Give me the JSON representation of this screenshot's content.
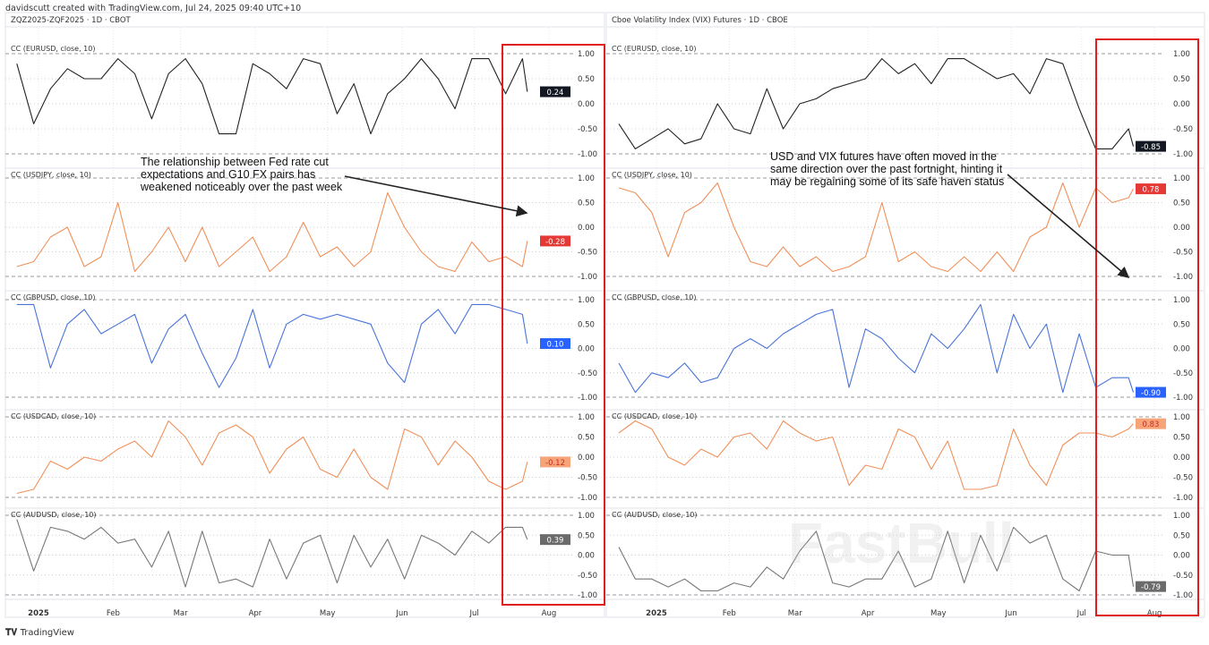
{
  "header": {
    "credit": "davidscutt created with TradingView.com, Jul 24, 2025 09:40 UTC+10"
  },
  "footer": {
    "brand": "TradingView"
  },
  "watermark": "FastBull",
  "chart_data": [
    {
      "type": "line",
      "title": "ZQZ2025-ZQF2025 · 1D · CBOT",
      "x": [
        "2024-12-16",
        "2024-12-23",
        "2024-12-30",
        "2025-01-06",
        "2025-01-13",
        "2025-01-20",
        "2025-01-27",
        "2025-02-03",
        "2025-02-10",
        "2025-02-17",
        "2025-02-24",
        "2025-03-03",
        "2025-03-10",
        "2025-03-17",
        "2025-03-24",
        "2025-03-31",
        "2025-04-07",
        "2025-04-14",
        "2025-04-21",
        "2025-04-28",
        "2025-05-05",
        "2025-05-12",
        "2025-05-19",
        "2025-05-26",
        "2025-06-02",
        "2025-06-09",
        "2025-06-16",
        "2025-06-23",
        "2025-06-30",
        "2025-07-07",
        "2025-07-14",
        "2025-07-21",
        "2025-07-23"
      ],
      "x_ticks": [
        "2025",
        "Feb",
        "Mar",
        "Apr",
        "May",
        "Jun",
        "Jul",
        "Aug"
      ],
      "y_ticks": [
        "1.00",
        "0.50",
        "0.00",
        "-0.50",
        "-1.00"
      ],
      "ylim": [
        -1,
        1
      ],
      "grid": true,
      "annotation": "The relationship between Fed rate cut expectations and G10 FX pairs has weakened noticeably over the past week",
      "highlight": "red box over last two weeks",
      "panes": [
        {
          "name": "CC (EURUSD, close, 10)",
          "color": "#222222",
          "last": "0.24",
          "badge": "#131722",
          "values": [
            0.9,
            0.8,
            -0.4,
            0.3,
            0.7,
            0.5,
            0.5,
            0.9,
            0.6,
            -0.3,
            0.6,
            0.9,
            0.4,
            -0.6,
            -0.6,
            0.8,
            0.6,
            0.3,
            0.9,
            0.8,
            -0.2,
            0.4,
            -0.6,
            0.2,
            0.5,
            0.9,
            0.5,
            -0.1,
            0.9,
            0.9,
            0.2,
            0.9,
            0.24
          ]
        },
        {
          "name": "CC (USDJPY, close, 10)",
          "color": "#f0905a",
          "last": "-0.28",
          "badge": "#e53935",
          "values": [
            -0.9,
            -0.8,
            -0.7,
            -0.2,
            0.0,
            -0.8,
            -0.6,
            0.5,
            -0.9,
            -0.5,
            0.0,
            -0.7,
            0.0,
            -0.8,
            -0.5,
            -0.2,
            -0.9,
            -0.6,
            0.1,
            -0.6,
            -0.4,
            -0.8,
            -0.5,
            0.7,
            0.0,
            -0.5,
            -0.8,
            -0.9,
            -0.3,
            -0.7,
            -0.6,
            -0.8,
            -0.28
          ]
        },
        {
          "name": "CC (GBPUSD, close, 10)",
          "color": "#4a74d9",
          "last": "0.10",
          "badge": "#2962ff",
          "values": [
            0.6,
            0.9,
            0.9,
            -0.4,
            0.5,
            0.8,
            0.3,
            0.5,
            0.7,
            -0.3,
            0.4,
            0.7,
            -0.1,
            -0.8,
            -0.2,
            0.8,
            -0.4,
            0.5,
            0.7,
            0.6,
            0.7,
            0.6,
            0.5,
            -0.3,
            -0.7,
            0.5,
            0.8,
            0.3,
            0.9,
            0.9,
            0.8,
            0.7,
            0.1
          ]
        },
        {
          "name": "CC (USDCAD, close, 10)",
          "color": "#f0905a",
          "last": "-0.12",
          "badge": "#f7a578",
          "values": [
            -0.6,
            -0.9,
            -0.8,
            -0.1,
            -0.3,
            0.0,
            -0.1,
            0.2,
            0.4,
            0.0,
            0.9,
            0.5,
            -0.2,
            0.6,
            0.8,
            0.5,
            -0.4,
            0.2,
            0.5,
            -0.3,
            -0.5,
            0.2,
            -0.5,
            -0.8,
            0.7,
            0.5,
            -0.2,
            0.4,
            0.0,
            -0.6,
            -0.8,
            -0.6,
            -0.12
          ]
        },
        {
          "name": "CC (AUDUSD, close, 10)",
          "color": "#777777",
          "last": "0.39",
          "badge": "#6b6b6b",
          "values": [
            0.6,
            0.9,
            -0.4,
            0.7,
            0.6,
            0.4,
            0.7,
            0.3,
            0.4,
            -0.3,
            0.6,
            -0.8,
            0.6,
            -0.7,
            -0.6,
            -0.8,
            0.4,
            -0.6,
            0.3,
            0.5,
            -0.7,
            0.5,
            -0.3,
            0.4,
            -0.6,
            0.5,
            0.3,
            0.0,
            0.6,
            0.3,
            0.7,
            0.7,
            0.39
          ]
        }
      ]
    },
    {
      "type": "line",
      "title": "Cboe Volatility Index (VIX) Futures · 1D · CBOE",
      "x": [
        "2024-12-16",
        "2024-12-23",
        "2024-12-30",
        "2025-01-06",
        "2025-01-13",
        "2025-01-20",
        "2025-01-27",
        "2025-02-03",
        "2025-02-10",
        "2025-02-17",
        "2025-02-24",
        "2025-03-03",
        "2025-03-10",
        "2025-03-17",
        "2025-03-24",
        "2025-03-31",
        "2025-04-07",
        "2025-04-14",
        "2025-04-21",
        "2025-04-28",
        "2025-05-05",
        "2025-05-12",
        "2025-05-19",
        "2025-05-26",
        "2025-06-02",
        "2025-06-09",
        "2025-06-16",
        "2025-06-23",
        "2025-06-30",
        "2025-07-07",
        "2025-07-14",
        "2025-07-21",
        "2025-07-23"
      ],
      "x_ticks": [
        "2025",
        "Feb",
        "Mar",
        "Apr",
        "May",
        "Jun",
        "Jul",
        "Aug"
      ],
      "y_ticks": [
        "1.00",
        "0.50",
        "0.00",
        "-0.50",
        "-1.00"
      ],
      "ylim": [
        -1,
        1
      ],
      "grid": true,
      "annotation": "USD and VIX futures have often moved in the same direction over the past fortnight, hinting it may be regaining some of its safe haven status",
      "highlight": "red box over last two weeks",
      "panes": [
        {
          "name": "CC (EURUSD, close, 10)",
          "color": "#222222",
          "last": "-0.85",
          "badge": "#131722",
          "values": [
            -0.4,
            -0.9,
            -0.7,
            -0.5,
            -0.8,
            -0.7,
            0.0,
            -0.5,
            -0.6,
            0.3,
            -0.5,
            0.0,
            0.1,
            0.3,
            0.4,
            0.5,
            0.9,
            0.6,
            0.8,
            0.4,
            0.9,
            0.9,
            0.7,
            0.5,
            0.6,
            0.2,
            0.9,
            0.8,
            -0.1,
            -0.9,
            -0.9,
            -0.5,
            -0.85
          ]
        },
        {
          "name": "CC (USDJPY, close, 10)",
          "color": "#f0905a",
          "last": "0.78",
          "badge": "#e53935",
          "values": [
            0.8,
            0.7,
            0.3,
            -0.6,
            0.3,
            0.5,
            0.9,
            0.0,
            -0.7,
            -0.8,
            -0.4,
            -0.8,
            -0.6,
            -0.9,
            -0.8,
            -0.6,
            0.5,
            -0.7,
            -0.5,
            -0.8,
            -0.9,
            -0.6,
            -0.9,
            -0.5,
            -0.9,
            -0.2,
            0.0,
            0.9,
            0.0,
            0.8,
            0.5,
            0.6,
            0.78
          ]
        },
        {
          "name": "CC (GBPUSD, close, 10)",
          "color": "#4a74d9",
          "last": "-0.90",
          "badge": "#2962ff",
          "values": [
            -0.3,
            -0.9,
            -0.5,
            -0.6,
            -0.3,
            -0.7,
            -0.6,
            0.0,
            0.2,
            0.0,
            0.3,
            0.5,
            0.7,
            0.8,
            -0.8,
            0.4,
            0.2,
            -0.2,
            -0.5,
            0.3,
            0.0,
            0.4,
            0.9,
            -0.5,
            0.7,
            0.0,
            0.5,
            -0.9,
            0.3,
            -0.8,
            -0.6,
            -0.6,
            -0.9
          ]
        },
        {
          "name": "CC (USDCAD, close, 10)",
          "color": "#f0905a",
          "last": "0.83",
          "badge": "#f7a578",
          "values": [
            0.6,
            0.9,
            0.7,
            0.0,
            -0.2,
            0.2,
            0.0,
            0.5,
            0.6,
            0.2,
            0.9,
            0.6,
            0.4,
            0.5,
            -0.7,
            -0.2,
            -0.3,
            0.7,
            0.5,
            -0.3,
            0.4,
            -0.8,
            -0.8,
            -0.7,
            0.7,
            -0.2,
            -0.7,
            0.3,
            0.6,
            0.6,
            0.5,
            0.7,
            0.83
          ]
        },
        {
          "name": "CC (AUDUSD, close, 10)",
          "color": "#777777",
          "last": "-0.79",
          "badge": "#6b6b6b",
          "values": [
            0.2,
            -0.6,
            -0.6,
            -0.8,
            -0.6,
            -0.9,
            -0.9,
            -0.7,
            -0.8,
            -0.3,
            -0.6,
            0.1,
            0.6,
            -0.7,
            -0.8,
            -0.6,
            -0.6,
            0.1,
            -0.8,
            -0.6,
            0.6,
            -0.7,
            0.5,
            -0.4,
            0.7,
            0.3,
            0.5,
            -0.6,
            -0.9,
            0.1,
            0.0,
            0.0,
            -0.79
          ]
        }
      ]
    }
  ]
}
